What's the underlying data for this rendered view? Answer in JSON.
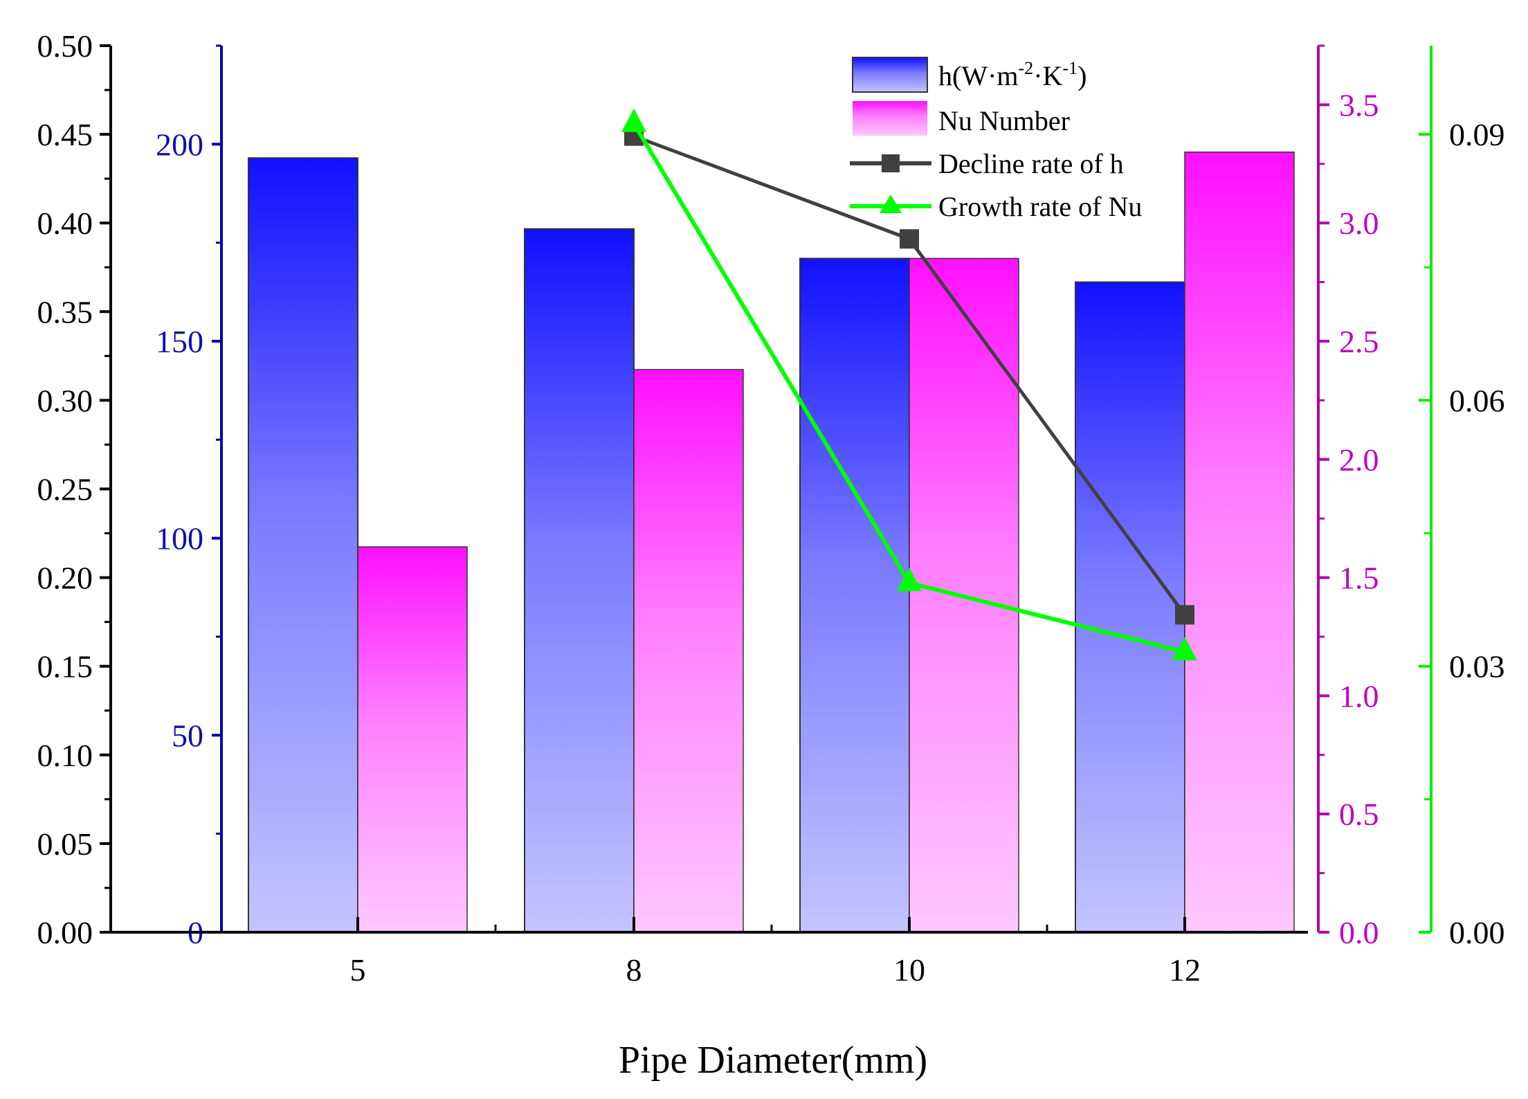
{
  "chart_data": {
    "type": "bar",
    "xlabel": "Pipe Diameter(mm)",
    "categories": [
      "5",
      "8",
      "10",
      "12"
    ],
    "bar_series": [
      {
        "name": "h(W·m⁻²·K⁻¹)",
        "legend_base": "h(W·m",
        "legend_sup1": "-2",
        "legend_mid": "·K",
        "legend_sup2": "-1",
        "legend_end": ")",
        "axis": "left-inner",
        "color": "#1a1aff",
        "values": [
          196.5,
          178.5,
          171,
          165
        ]
      },
      {
        "name": "Nu Number",
        "axis": "right-inner",
        "color": "#ff1aff",
        "values": [
          1.63,
          2.38,
          2.85,
          3.3
        ]
      }
    ],
    "line_series": [
      {
        "name": "Decline rate of h",
        "axis": "right-outer",
        "color": "#404040",
        "marker": "square",
        "x": [
          "8",
          "10",
          "12"
        ],
        "values": [
          0.449,
          0.391,
          0.179
        ]
      },
      {
        "name": "Growth rate of Nu",
        "axis": "right-outer",
        "color": "#00ff00",
        "marker": "triangle",
        "x": [
          "8",
          "10",
          "12"
        ],
        "values": [
          0.456,
          0.197,
          0.158
        ]
      }
    ],
    "axes": {
      "left_outer": {
        "range": [
          0,
          0.5
        ],
        "ticks": [
          "0.00",
          "0.05",
          "0.10",
          "0.15",
          "0.20",
          "0.25",
          "0.30",
          "0.35",
          "0.40",
          "0.45",
          "0.50"
        ],
        "color": "#000000"
      },
      "left_inner": {
        "range": [
          0,
          225
        ],
        "ticks": [
          "0",
          "50",
          "100",
          "150",
          "200"
        ],
        "color": "#0000aa"
      },
      "right_inner": {
        "range": [
          0,
          3.75
        ],
        "ticks": [
          "0.0",
          "0.5",
          "1.0",
          "1.5",
          "2.0",
          "2.5",
          "3.0",
          "3.5"
        ],
        "color": "#b000b0"
      },
      "right_outer": {
        "range": [
          0,
          0.1
        ],
        "ticks": [
          "0.00",
          "0.03",
          "0.06",
          "0.09"
        ],
        "color": "#00ee00"
      }
    },
    "legend": "top-right",
    "grid": false
  }
}
